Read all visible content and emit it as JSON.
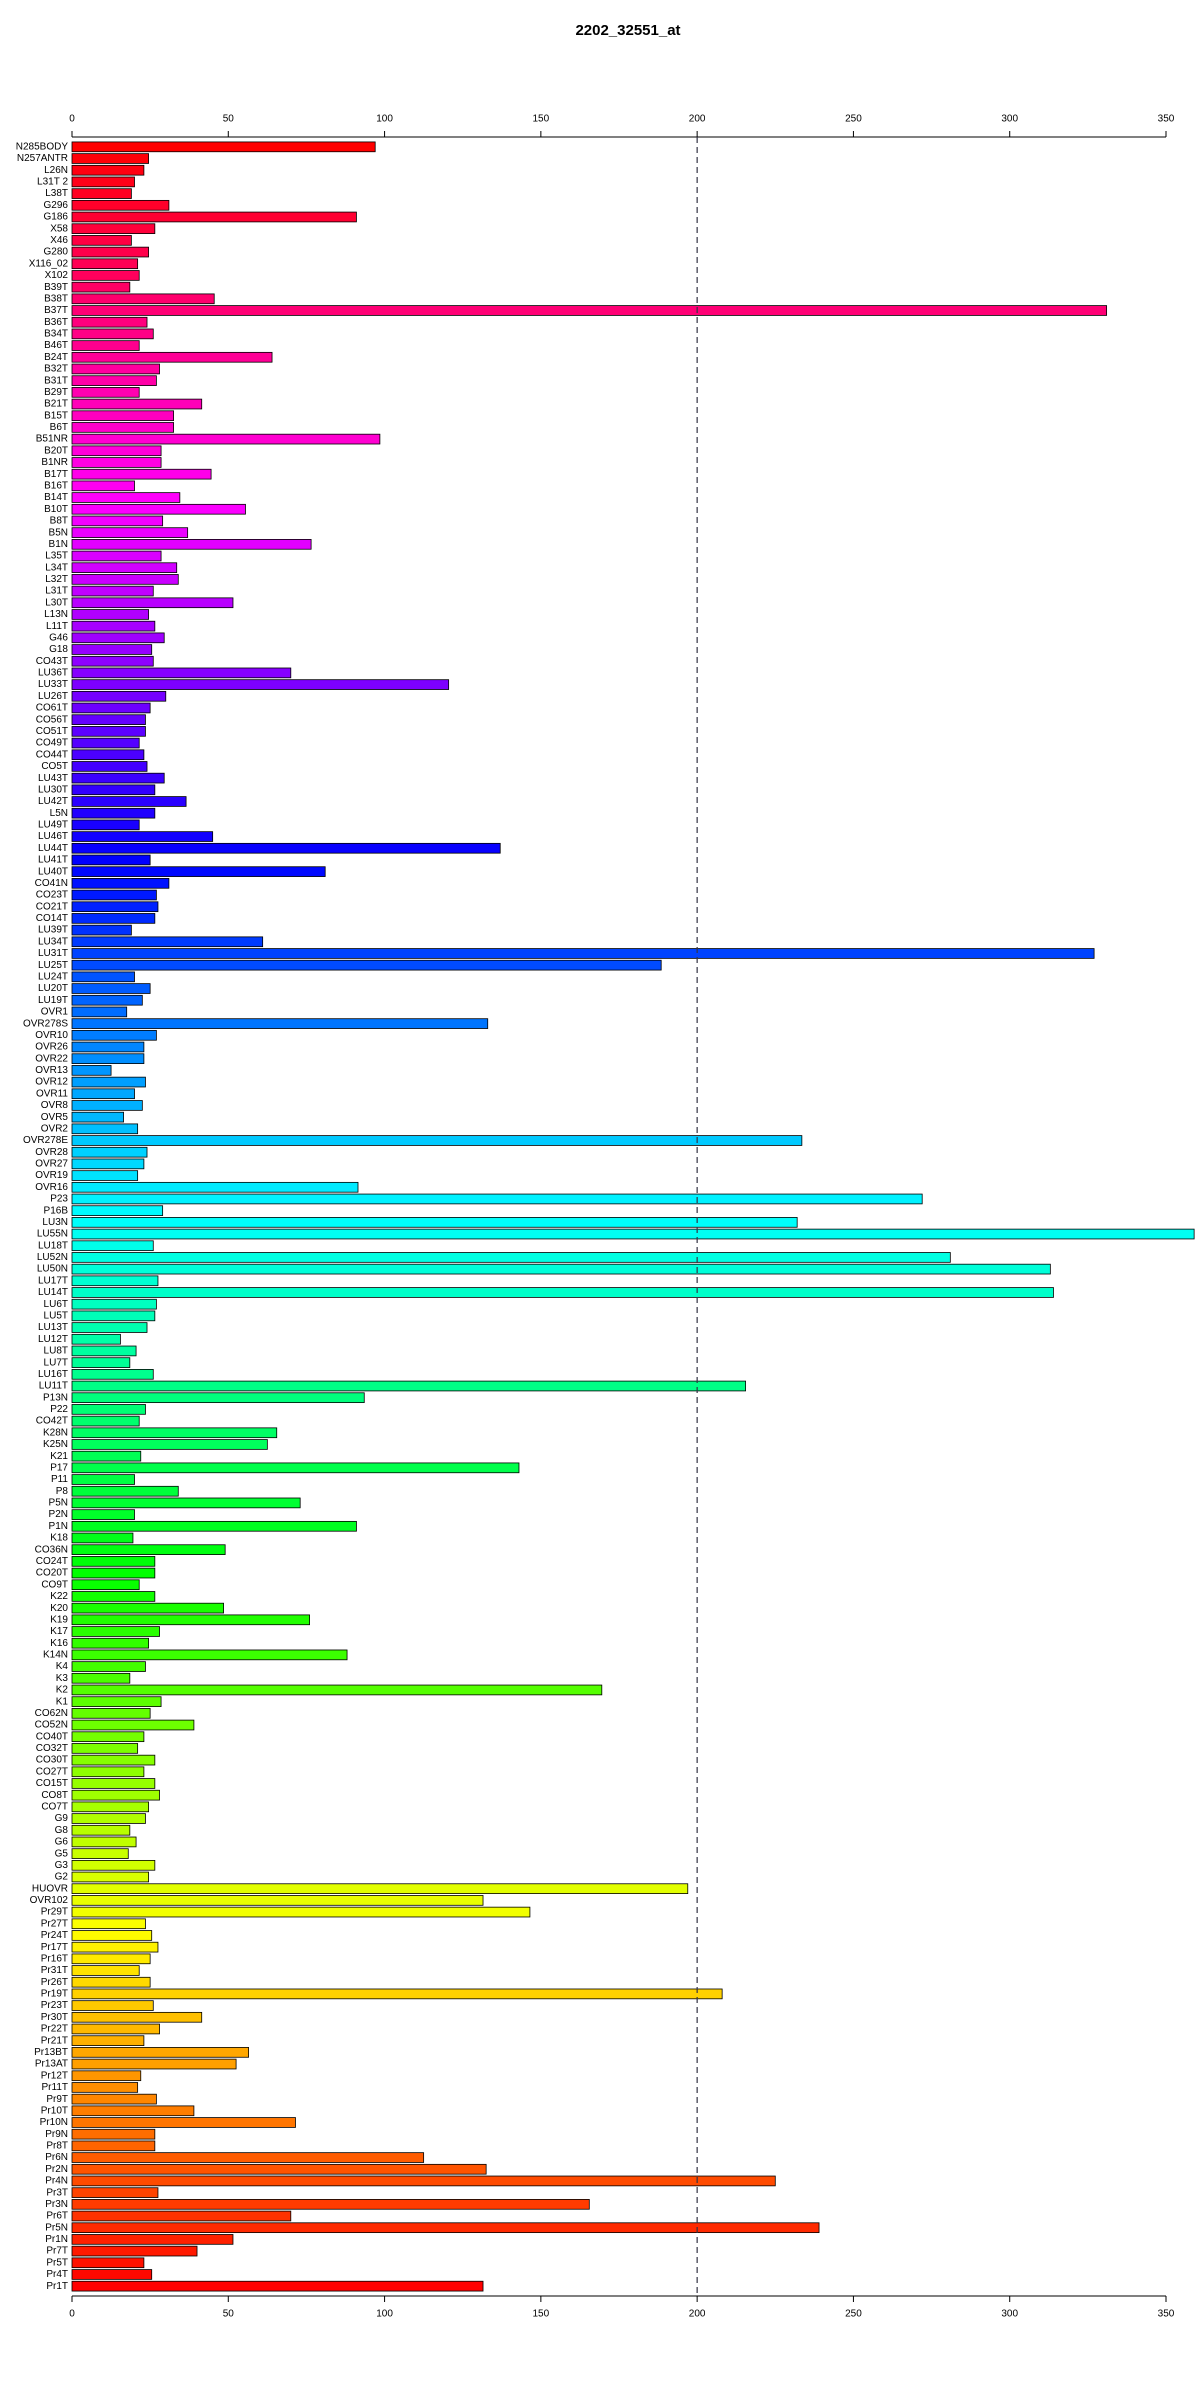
{
  "chart_data": {
    "type": "barh",
    "title": "2202_32551_at",
    "categories": [
      "N285BODY",
      "N257ANTR",
      "L26N",
      "L31T 2",
      "L38T",
      "G296",
      "G186",
      "X58",
      "X46",
      "G280",
      "X116_02",
      "X102",
      "B39T",
      "B38T",
      "B37T",
      "B36T",
      "B34T",
      "B46T",
      "B24T",
      "B32T",
      "B31T",
      "B29T",
      "B21T",
      "B15T",
      "B6T",
      "B51NR",
      "B20T",
      "B1NR",
      "B17T",
      "B16T",
      "B14T",
      "B10T",
      "B8T",
      "B5N",
      "B1N",
      "L35T",
      "L34T",
      "L32T",
      "L31T",
      "L30T",
      "L13N",
      "L11T",
      "G46",
      "G18",
      "CO43T",
      "LU36T",
      "LU33T",
      "LU26T",
      "CO61T",
      "CO56T",
      "CO51T",
      "CO49T",
      "CO44T",
      "CO5T",
      "LU43T",
      "LU30T",
      "LU42T",
      "L5N",
      "LU49T",
      "LU46T",
      "LU44T",
      "LU41T",
      "LU40T",
      "CO41N",
      "CO23T",
      "CO21T",
      "CO14T",
      "LU39T",
      "LU34T",
      "LU31T",
      "LU25T",
      "LU24T",
      "LU20T",
      "LU19T",
      "OVR1",
      "OVR278S",
      "OVR10",
      "OVR26",
      "OVR22",
      "OVR13",
      "OVR12",
      "OVR11",
      "OVR8",
      "OVR5",
      "OVR2",
      "OVR278E",
      "OVR28",
      "OVR27",
      "OVR19",
      "OVR16",
      "P23",
      "P16B",
      "LU3N",
      "LU55N",
      "LU18T",
      "LU52N",
      "LU50N",
      "LU17T",
      "LU14T",
      "LU6T",
      "LU5T",
      "LU13T",
      "LU12T",
      "LU8T",
      "LU7T",
      "LU16T",
      "LU11T",
      "P13N",
      "P22",
      "CO42T",
      "K28N",
      "K25N",
      "K21",
      "P17",
      "P11",
      "P8",
      "P5N",
      "P2N",
      "P1N",
      "K18",
      "CO36N",
      "CO24T",
      "CO20T",
      "CO9T",
      "K22",
      "K20",
      "K19",
      "K17",
      "K16",
      "K14N",
      "K4",
      "K3",
      "K2",
      "K1",
      "CO62N",
      "CO52N",
      "CO40T",
      "CO32T",
      "CO30T",
      "CO27T",
      "CO15T",
      "CO8T",
      "CO7T",
      "G9",
      "G8",
      "G6",
      "G5",
      "G3",
      "G2",
      "HUOVR",
      "OVR102",
      "Pr29T",
      "Pr27T",
      "Pr24T",
      "Pr17T",
      "Pr16T",
      "Pr31T",
      "Pr26T",
      "Pr19T",
      "Pr23T",
      "Pr30T",
      "Pr22T",
      "Pr21T",
      "Pr13BT",
      "Pr13AT",
      "Pr12T",
      "Pr11T",
      "Pr9T",
      "Pr10T",
      "Pr10N",
      "Pr9N",
      "Pr8T",
      "Pr6N",
      "Pr2N",
      "Pr4N",
      "Pr3T",
      "Pr3N",
      "Pr6T",
      "Pr5N",
      "Pr1N",
      "Pr7T",
      "Pr5T",
      "Pr4T",
      "Pr1T"
    ],
    "values": [
      97,
      24.5,
      23,
      20,
      19,
      31,
      91,
      26.5,
      19,
      24.5,
      21,
      21.5,
      18.5,
      45.5,
      331,
      24,
      26,
      21.5,
      64,
      28,
      27,
      21.5,
      41.5,
      32.5,
      32.5,
      98.5,
      28.5,
      28.5,
      44.5,
      20,
      34.5,
      55.5,
      29,
      37,
      76.5,
      28.5,
      33.5,
      34,
      26,
      51.5,
      24.5,
      26.5,
      29.5,
      25.5,
      26,
      70,
      120.5,
      30,
      25,
      23.5,
      23.5,
      21.5,
      23,
      24,
      29.5,
      26.5,
      36.5,
      26.5,
      21.5,
      45,
      137,
      25,
      81,
      31,
      27,
      27.5,
      26.5,
      19,
      61,
      327,
      188.5,
      20,
      25,
      22.5,
      17.5,
      133,
      27,
      23,
      23,
      12.5,
      23.5,
      20,
      22.5,
      16.5,
      21,
      233.5,
      24,
      23,
      21,
      91.5,
      272,
      29,
      232,
      359,
      26,
      281,
      313,
      27.5,
      314,
      27,
      26.5,
      24,
      15.5,
      20.5,
      18.5,
      26,
      215.5,
      93.5,
      23.5,
      21.5,
      65.5,
      62.5,
      22,
      143,
      20,
      34,
      73,
      20,
      91,
      19.5,
      49,
      26.5,
      26.5,
      21.5,
      26.5,
      48.5,
      76,
      28,
      24.5,
      88,
      23.5,
      18.5,
      169.5,
      28.5,
      25,
      39,
      23,
      21,
      26.5,
      23,
      26.5,
      28,
      24.5,
      23.5,
      18.5,
      20.5,
      18,
      26.5,
      24.5,
      197,
      131.5,
      146.5,
      23.5,
      25.5,
      27.5,
      25,
      21.5,
      25,
      208,
      26,
      41.5,
      28,
      23,
      56.5,
      52.5,
      22,
      21,
      27,
      39,
      71.5,
      26.5,
      26.5,
      112.5,
      132.5,
      225,
      27.5,
      165.5,
      70,
      239,
      51.5,
      40,
      23,
      25.5,
      131.5
    ],
    "palette": "rainbow",
    "xlim": [
      0,
      350
    ],
    "xticks": [
      0,
      50,
      100,
      150,
      200,
      250,
      300,
      350
    ],
    "reference_line": 200
  }
}
